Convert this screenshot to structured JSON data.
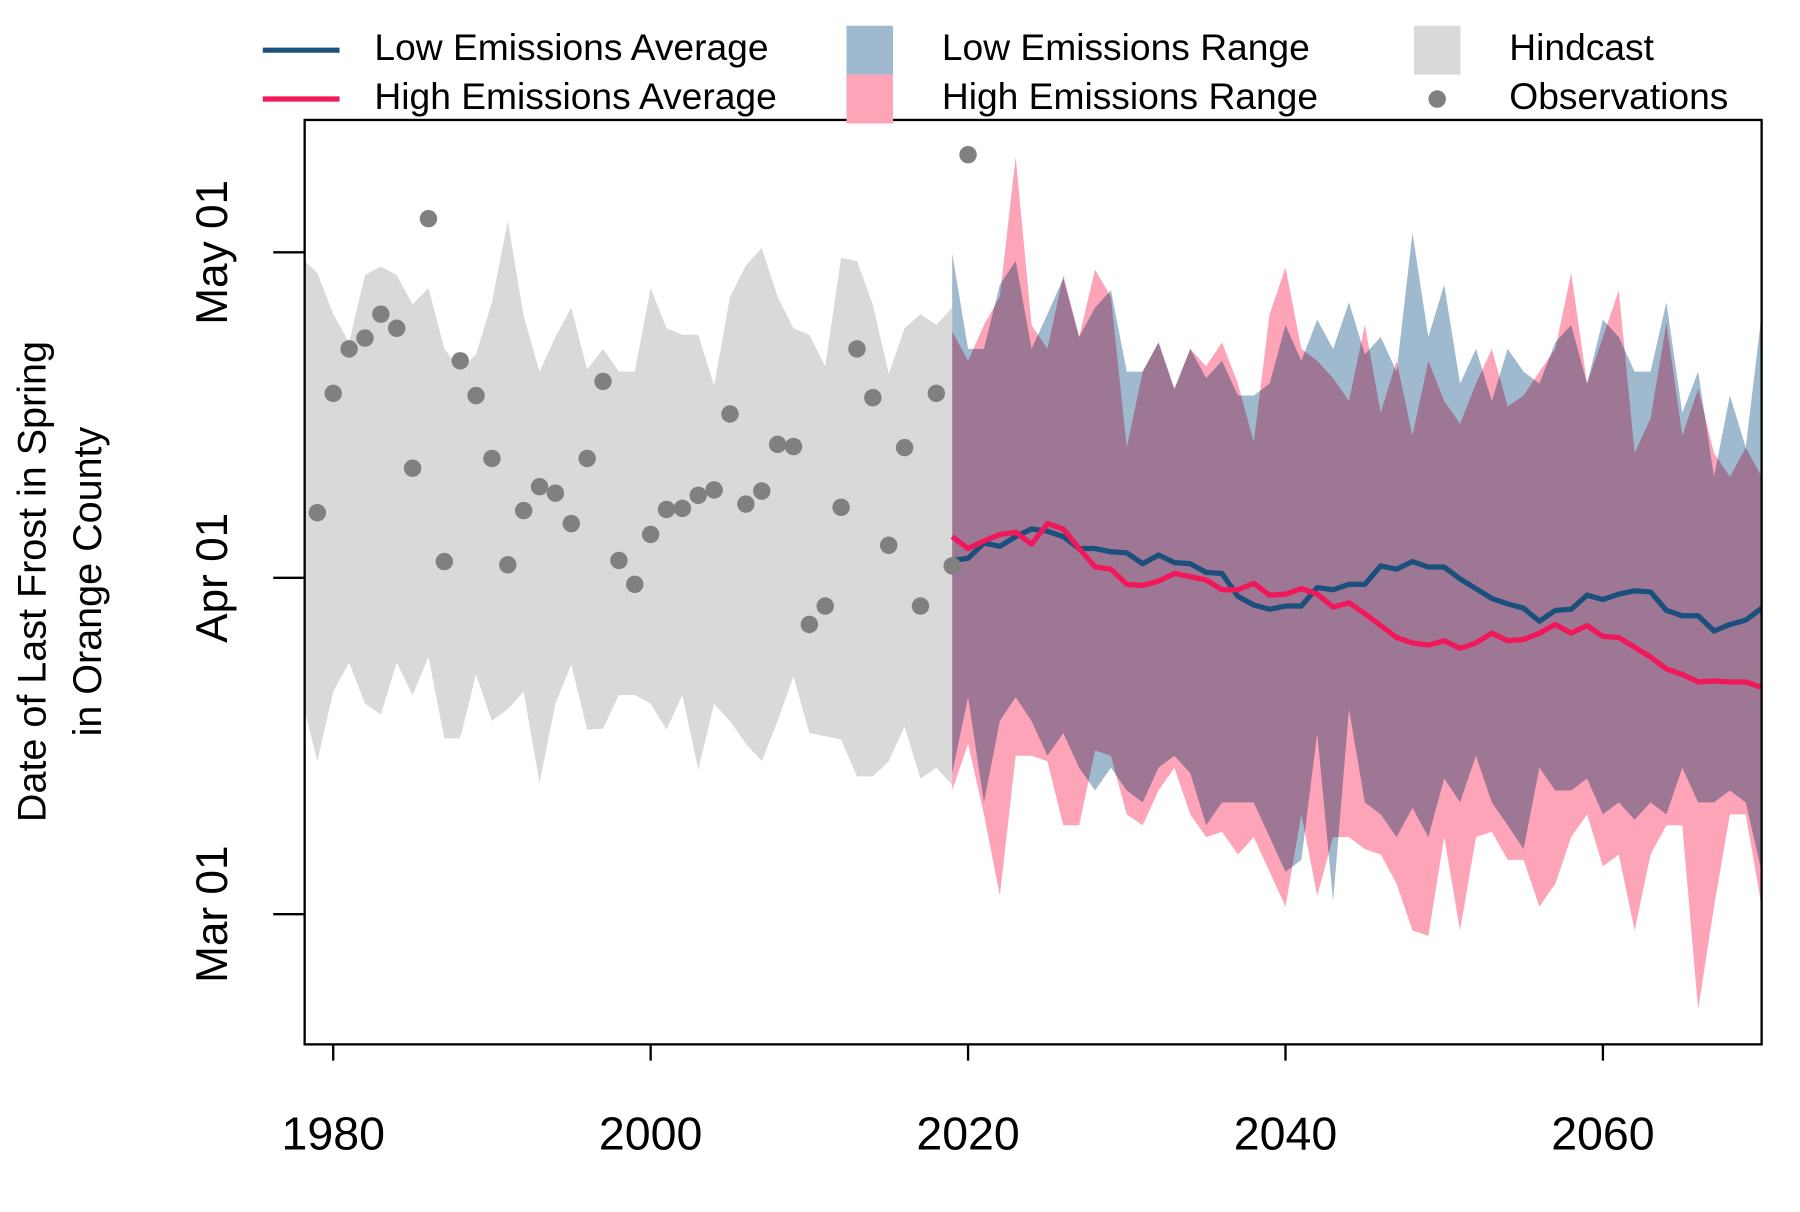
{
  "chart_data": {
    "type": "line",
    "ylabel": [
      "Date of Last Frost in Spring",
      "in Orange County"
    ],
    "xlim": [
      1978.2,
      2070
    ],
    "xticks": [
      1980,
      2000,
      2020,
      2040,
      2060
    ],
    "ylim": [
      48.0,
      133.2
    ],
    "yticks": [
      {
        "value": 60,
        "label": "Mar 01"
      },
      {
        "value": 91,
        "label": "Apr 01"
      },
      {
        "value": 121,
        "label": "May 01"
      }
    ],
    "series": [
      {
        "name": "Low Emissions Average",
        "kind": "line",
        "color": "#1b4f7c",
        "x": [
          2019,
          2020,
          2021,
          2022,
          2023,
          2024,
          2025,
          2026,
          2027,
          2028,
          2029,
          2030,
          2031,
          2032,
          2033,
          2034,
          2035,
          2036,
          2037,
          2038,
          2039,
          2040,
          2041,
          2042,
          2043,
          2044,
          2045,
          2046,
          2047,
          2048,
          2049,
          2050,
          2051,
          2052,
          2053,
          2054,
          2055,
          2056,
          2057,
          2058,
          2059,
          2060,
          2061,
          2062,
          2063,
          2064,
          2065,
          2066,
          2067,
          2068,
          2069,
          2070
        ],
        "values": [
          92.6,
          92.8,
          94.2,
          93.9,
          94.8,
          95.5,
          95.3,
          94.8,
          93.7,
          93.7,
          93.4,
          93.3,
          92.3,
          93.1,
          92.4,
          92.3,
          91.5,
          91.4,
          89.3,
          88.5,
          88.1,
          88.4,
          88.4,
          90.1,
          89.9,
          90.4,
          90.4,
          92.1,
          91.8,
          92.5,
          92.0,
          92.0,
          90.9,
          90.0,
          89.1,
          88.6,
          88.2,
          87.0,
          88.0,
          88.1,
          89.4,
          89.0,
          89.5,
          89.8,
          89.7,
          88.0,
          87.5,
          87.5,
          86.1,
          86.7,
          87.1,
          88.2
        ]
      },
      {
        "name": "High Emissions Average",
        "kind": "line",
        "color": "#f0185a",
        "x": [
          2019,
          2020,
          2021,
          2022,
          2023,
          2024,
          2025,
          2026,
          2027,
          2028,
          2029,
          2030,
          2031,
          2032,
          2033,
          2034,
          2035,
          2036,
          2037,
          2038,
          2039,
          2040,
          2041,
          2042,
          2043,
          2044,
          2045,
          2046,
          2047,
          2048,
          2049,
          2050,
          2051,
          2052,
          2053,
          2054,
          2055,
          2056,
          2057,
          2058,
          2059,
          2060,
          2061,
          2062,
          2063,
          2064,
          2065,
          2066,
          2067,
          2068,
          2069,
          2070
        ],
        "values": [
          94.8,
          93.7,
          94.4,
          95.0,
          95.2,
          94.1,
          96.0,
          95.5,
          93.7,
          92.0,
          91.8,
          90.4,
          90.3,
          90.7,
          91.4,
          91.1,
          90.8,
          89.9,
          89.9,
          90.5,
          89.4,
          89.5,
          90.0,
          89.5,
          88.3,
          88.7,
          87.7,
          86.6,
          85.5,
          85.0,
          84.8,
          85.2,
          84.5,
          85.0,
          85.9,
          85.2,
          85.3,
          85.9,
          86.7,
          85.9,
          86.6,
          85.6,
          85.5,
          84.6,
          83.7,
          82.6,
          82.1,
          81.4,
          81.5,
          81.4,
          81.4,
          80.9
        ]
      },
      {
        "name": "Low Emissions Range",
        "kind": "band",
        "color": "#9fb9cf",
        "x": [
          2019,
          2020,
          2021,
          2022,
          2023,
          2024,
          2025,
          2026,
          2027,
          2028,
          2029,
          2030,
          2031,
          2032,
          2033,
          2034,
          2035,
          2036,
          2037,
          2038,
          2039,
          2040,
          2041,
          2042,
          2043,
          2044,
          2045,
          2046,
          2047,
          2048,
          2049,
          2050,
          2051,
          2052,
          2053,
          2054,
          2055,
          2056,
          2057,
          2058,
          2059,
          2060,
          2061,
          2062,
          2063,
          2064,
          2065,
          2066,
          2067,
          2068,
          2069,
          2070
        ],
        "high": [
          120.9,
          112.1,
          112.1,
          118.0,
          120.2,
          112.1,
          115.3,
          118.6,
          113.2,
          115.9,
          117.5,
          110.0,
          110.0,
          112.7,
          108.4,
          112.1,
          109.4,
          111.0,
          107.8,
          107.8,
          108.9,
          114.3,
          111.0,
          114.8,
          112.1,
          116.4,
          111.6,
          113.2,
          110.0,
          122.8,
          113.2,
          118.0,
          108.9,
          112.1,
          107.3,
          112.1,
          110.0,
          108.9,
          112.7,
          114.3,
          108.9,
          114.8,
          113.2,
          110.0,
          110.0,
          116.4,
          106.2,
          110.0,
          100.3,
          107.8,
          103.0,
          115.3
        ],
        "low": [
          73.0,
          80.0,
          70.3,
          77.8,
          80.0,
          77.8,
          74.6,
          76.7,
          73.5,
          71.4,
          73.5,
          71.4,
          70.3,
          73.5,
          74.6,
          73.0,
          68.2,
          70.3,
          70.3,
          70.3,
          67.1,
          63.9,
          65.0,
          76.7,
          61.2,
          78.9,
          70.3,
          69.2,
          67.1,
          69.8,
          67.1,
          72.5,
          70.3,
          74.6,
          70.3,
          68.2,
          66.0,
          73.5,
          71.4,
          71.4,
          72.5,
          69.2,
          70.3,
          68.7,
          70.3,
          69.2,
          73.5,
          70.3,
          70.3,
          71.4,
          70.3,
          63.9
        ]
      },
      {
        "name": "High Emissions Range",
        "kind": "band",
        "color": "#fda4b8",
        "x": [
          2019,
          2020,
          2021,
          2022,
          2023,
          2024,
          2025,
          2026,
          2027,
          2028,
          2029,
          2030,
          2031,
          2032,
          2033,
          2034,
          2035,
          2036,
          2037,
          2038,
          2039,
          2040,
          2041,
          2042,
          2043,
          2044,
          2045,
          2046,
          2047,
          2048,
          2049,
          2050,
          2051,
          2052,
          2053,
          2054,
          2055,
          2056,
          2057,
          2058,
          2059,
          2060,
          2061,
          2062,
          2063,
          2064,
          2065,
          2066,
          2067,
          2068,
          2069,
          2070
        ],
        "high": [
          113.7,
          111.0,
          114.3,
          116.9,
          129.8,
          114.3,
          112.1,
          118.9,
          113.2,
          119.4,
          116.9,
          103.0,
          110.0,
          112.7,
          108.4,
          112.1,
          110.5,
          112.7,
          108.9,
          103.5,
          115.3,
          119.6,
          112.1,
          111.0,
          109.4,
          107.3,
          114.3,
          106.2,
          111.0,
          104.1,
          111.0,
          107.3,
          105.2,
          108.9,
          112.1,
          106.8,
          107.8,
          110.0,
          112.1,
          119.1,
          108.9,
          113.2,
          117.5,
          102.5,
          105.7,
          114.5,
          104.1,
          108.4,
          102.5,
          100.3,
          103.0,
          100.3
        ],
        "low": [
          71.4,
          75.7,
          69.2,
          61.7,
          74.6,
          74.6,
          74.1,
          68.2,
          68.2,
          75.1,
          74.6,
          69.2,
          68.2,
          71.4,
          73.5,
          69.2,
          67.1,
          67.6,
          65.5,
          67.1,
          63.9,
          60.7,
          69.2,
          61.7,
          67.1,
          67.1,
          66.0,
          65.5,
          62.8,
          58.5,
          58.0,
          67.1,
          58.5,
          67.1,
          67.6,
          65.0,
          65.0,
          60.7,
          62.8,
          67.1,
          69.2,
          64.4,
          65.5,
          58.5,
          65.5,
          68.2,
          68.2,
          51.2,
          60.7,
          69.2,
          69.2,
          60.7
        ]
      },
      {
        "name": "Hindcast",
        "kind": "band",
        "color": "#d9d9d9",
        "x": [
          1978,
          1979,
          1980,
          1981,
          1982,
          1983,
          1984,
          1985,
          1986,
          1987,
          1988,
          1989,
          1990,
          1991,
          1992,
          1993,
          1994,
          1995,
          1996,
          1997,
          1998,
          1999,
          2000,
          2001,
          2002,
          2003,
          2004,
          2005,
          2006,
          2007,
          2008,
          2009,
          2010,
          2011,
          2012,
          2013,
          2014,
          2015,
          2016,
          2017,
          2018,
          2019
        ],
        "high": [
          120.5,
          119.1,
          115.3,
          112.7,
          118.9,
          119.7,
          118.9,
          116.2,
          117.7,
          112.1,
          110.2,
          111.6,
          116.4,
          123.9,
          115.1,
          110.0,
          113.2,
          115.9,
          110.2,
          112.1,
          110.0,
          110.0,
          117.7,
          114.0,
          113.4,
          113.4,
          108.7,
          116.9,
          119.8,
          121.4,
          116.9,
          114.0,
          113.4,
          110.5,
          120.5,
          120.2,
          116.2,
          109.8,
          114.0,
          115.3,
          114.3,
          115.9
        ],
        "low": [
          80.0,
          74.1,
          80.5,
          83.2,
          79.4,
          78.4,
          83.2,
          80.2,
          83.7,
          76.2,
          76.2,
          82.1,
          77.8,
          78.9,
          80.5,
          72.1,
          79.4,
          83.0,
          77.0,
          77.1,
          80.2,
          80.2,
          79.4,
          77.0,
          80.2,
          73.3,
          79.4,
          77.8,
          75.7,
          74.1,
          77.8,
          81.9,
          76.7,
          76.4,
          76.1,
          72.7,
          72.7,
          74.1,
          77.3,
          72.5,
          73.5,
          71.9
        ]
      },
      {
        "name": "Observations",
        "kind": "points",
        "color": "#808080",
        "x": [
          1979,
          1980,
          1981,
          1982,
          1983,
          1984,
          1985,
          1986,
          1987,
          1988,
          1989,
          1990,
          1991,
          1992,
          1993,
          1994,
          1995,
          1996,
          1997,
          1998,
          1999,
          2000,
          2001,
          2002,
          2003,
          2004,
          2005,
          2006,
          2007,
          2008,
          2009,
          2010,
          2011,
          2012,
          2013,
          2014,
          2015,
          2016,
          2017,
          2018,
          2019,
          2020
        ],
        "values": [
          97.0,
          108.0,
          112.1,
          113.1,
          115.3,
          114.0,
          101.1,
          124.1,
          92.5,
          111.0,
          107.8,
          102.0,
          92.2,
          97.2,
          99.4,
          98.8,
          96.0,
          102.0,
          109.1,
          92.6,
          90.4,
          95.0,
          97.3,
          97.4,
          98.6,
          99.1,
          106.1,
          97.8,
          99.0,
          103.3,
          103.1,
          86.7,
          88.4,
          97.5,
          112.1,
          107.6,
          94.0,
          103.0,
          88.4,
          108.0,
          92.1,
          130.0
        ]
      }
    ]
  }
}
